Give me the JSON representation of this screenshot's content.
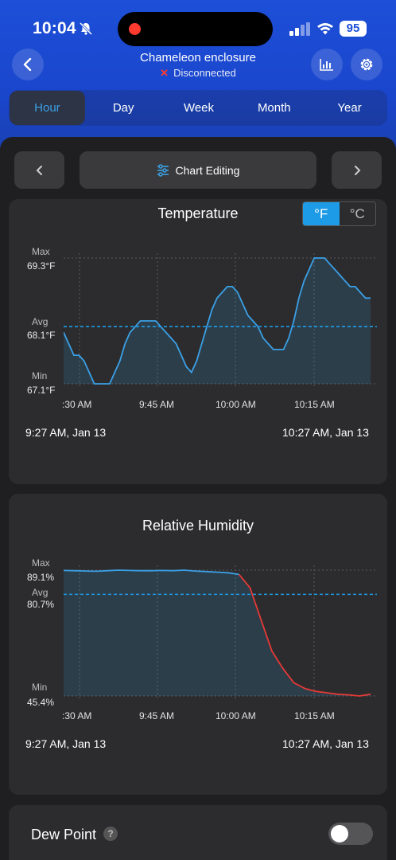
{
  "status": {
    "time": "10:04",
    "battery": "95"
  },
  "header": {
    "title": "Chameleon enclosure",
    "status_text": "Disconnected"
  },
  "tabs": [
    "Hour",
    "Day",
    "Week",
    "Month",
    "Year"
  ],
  "active_tab": "Hour",
  "controls": {
    "chart_editing": "Chart Editing"
  },
  "temperature": {
    "title": "Temperature",
    "units": [
      "°F",
      "°C"
    ],
    "max_label": "Max",
    "max_value": "69.3°F",
    "avg_label": "Avg",
    "avg_value": "68.1°F",
    "min_label": "Min",
    "min_value": "67.1°F",
    "x_ticks": [
      ":30 AM",
      "9:45 AM",
      "10:00 AM",
      "10:15 AM"
    ],
    "range_start": "9:27 AM,  Jan 13",
    "range_end": "10:27 AM,  Jan 13"
  },
  "humidity": {
    "title": "Relative Humidity",
    "max_label": "Max",
    "max_value": "89.1%",
    "avg_label": "Avg",
    "avg_value": "80.7%",
    "min_label": "Min",
    "min_value": "45.4%",
    "x_ticks": [
      ":30 AM",
      "9:45 AM",
      "10:00 AM",
      "10:15 AM"
    ],
    "range_start": "9:27 AM,  Jan 13",
    "range_end": "10:27 AM,  Jan 13"
  },
  "dew_point": {
    "label": "Dew Point",
    "help": "?"
  },
  "colors": {
    "accent": "#1e9be6",
    "line": "#3aa0e6",
    "alert": "#e53935"
  },
  "chart_data": [
    {
      "type": "line",
      "title": "Temperature",
      "ylabel": "°F",
      "ylim": [
        67.1,
        69.3
      ],
      "avg": 68.1,
      "x": [
        "9:27",
        "9:28",
        "9:29",
        "9:30",
        "9:31",
        "9:32",
        "9:33",
        "9:34",
        "9:35",
        "9:36",
        "9:37",
        "9:38",
        "9:39",
        "9:40",
        "9:41",
        "9:42",
        "9:43",
        "9:44",
        "9:45",
        "9:46",
        "9:47",
        "9:48",
        "9:49",
        "9:50",
        "9:51",
        "9:52",
        "9:53",
        "9:54",
        "9:55",
        "9:56",
        "9:57",
        "9:58",
        "9:59",
        "10:00",
        "10:01",
        "10:02",
        "10:03",
        "10:04",
        "10:05",
        "10:06",
        "10:07",
        "10:08",
        "10:09",
        "10:10",
        "10:11",
        "10:12",
        "10:13",
        "10:14",
        "10:15",
        "10:16",
        "10:17",
        "10:18",
        "10:19",
        "10:20",
        "10:21",
        "10:22",
        "10:23",
        "10:24",
        "10:25",
        "10:26",
        "10:27"
      ],
      "values": [
        68.0,
        67.8,
        67.6,
        67.6,
        67.5,
        67.3,
        67.1,
        67.1,
        67.1,
        67.1,
        67.3,
        67.5,
        67.8,
        68.0,
        68.1,
        68.2,
        68.2,
        68.2,
        68.2,
        68.1,
        68.0,
        67.9,
        67.8,
        67.6,
        67.4,
        67.3,
        67.5,
        67.8,
        68.1,
        68.4,
        68.6,
        68.7,
        68.8,
        68.8,
        68.7,
        68.5,
        68.3,
        68.2,
        68.1,
        67.9,
        67.8,
        67.7,
        67.7,
        67.7,
        67.9,
        68.2,
        68.6,
        68.9,
        69.1,
        69.3,
        69.3,
        69.3,
        69.2,
        69.1,
        69.0,
        68.9,
        68.8,
        68.8,
        68.7,
        68.6,
        68.6
      ]
    },
    {
      "type": "line",
      "title": "Relative Humidity",
      "ylabel": "%",
      "ylim": [
        45.4,
        89.1
      ],
      "avg": 80.7,
      "x": [
        "9:27",
        "9:30",
        "9:33",
        "9:36",
        "9:39",
        "9:42",
        "9:45",
        "9:48",
        "9:51",
        "9:54",
        "9:57",
        "10:00",
        "10:03",
        "10:06",
        "10:09",
        "10:12",
        "10:15",
        "10:16",
        "10:17",
        "10:18",
        "10:19",
        "10:20",
        "10:21",
        "10:22",
        "10:23",
        "10:24",
        "10:25",
        "10:26",
        "10:27"
      ],
      "values": [
        89.0,
        88.9,
        88.8,
        88.7,
        88.9,
        89.1,
        89.0,
        88.9,
        88.9,
        89.0,
        88.9,
        89.1,
        88.8,
        88.6,
        88.4,
        88.2,
        87.6,
        83.0,
        72.0,
        61.0,
        55.0,
        50.0,
        48.0,
        47.0,
        46.5,
        46.0,
        45.8,
        45.4,
        46.0
      ],
      "alert_from_index": 16
    }
  ]
}
